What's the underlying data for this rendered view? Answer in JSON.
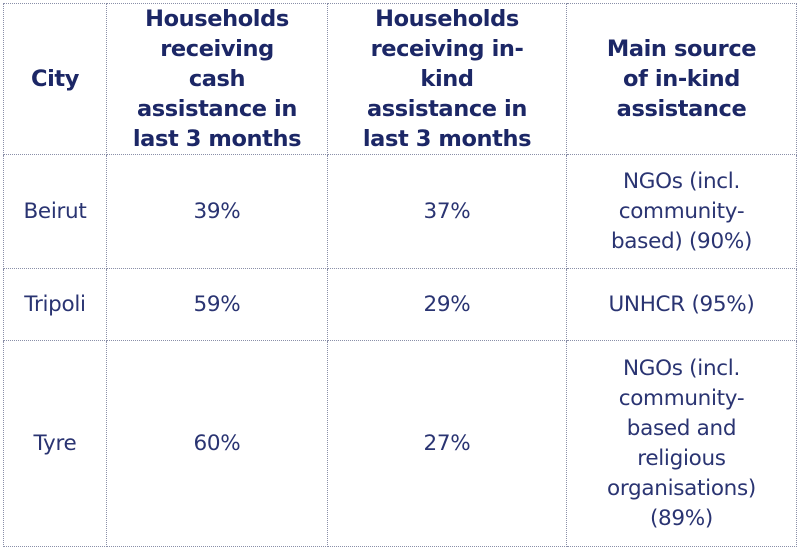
{
  "table": {
    "headers": {
      "city": "City",
      "cash": "Households receiving cash assistance in last 3 months",
      "inkind": "Households receiving in-kind assistance in last 3 months",
      "source": "Main source of in-kind assistance"
    },
    "rows": [
      {
        "city": "Beirut",
        "cash": "39%",
        "inkind": "37%",
        "source": "NGOs (incl. community-based) (90%)"
      },
      {
        "city": "Tripoli",
        "cash": "59%",
        "inkind": "29%",
        "source": "UNHCR (95%)"
      },
      {
        "city": "Tyre",
        "cash": "60%",
        "inkind": "27%",
        "source": "NGOs (incl. community-based and religious organisations) (89%)"
      }
    ]
  }
}
